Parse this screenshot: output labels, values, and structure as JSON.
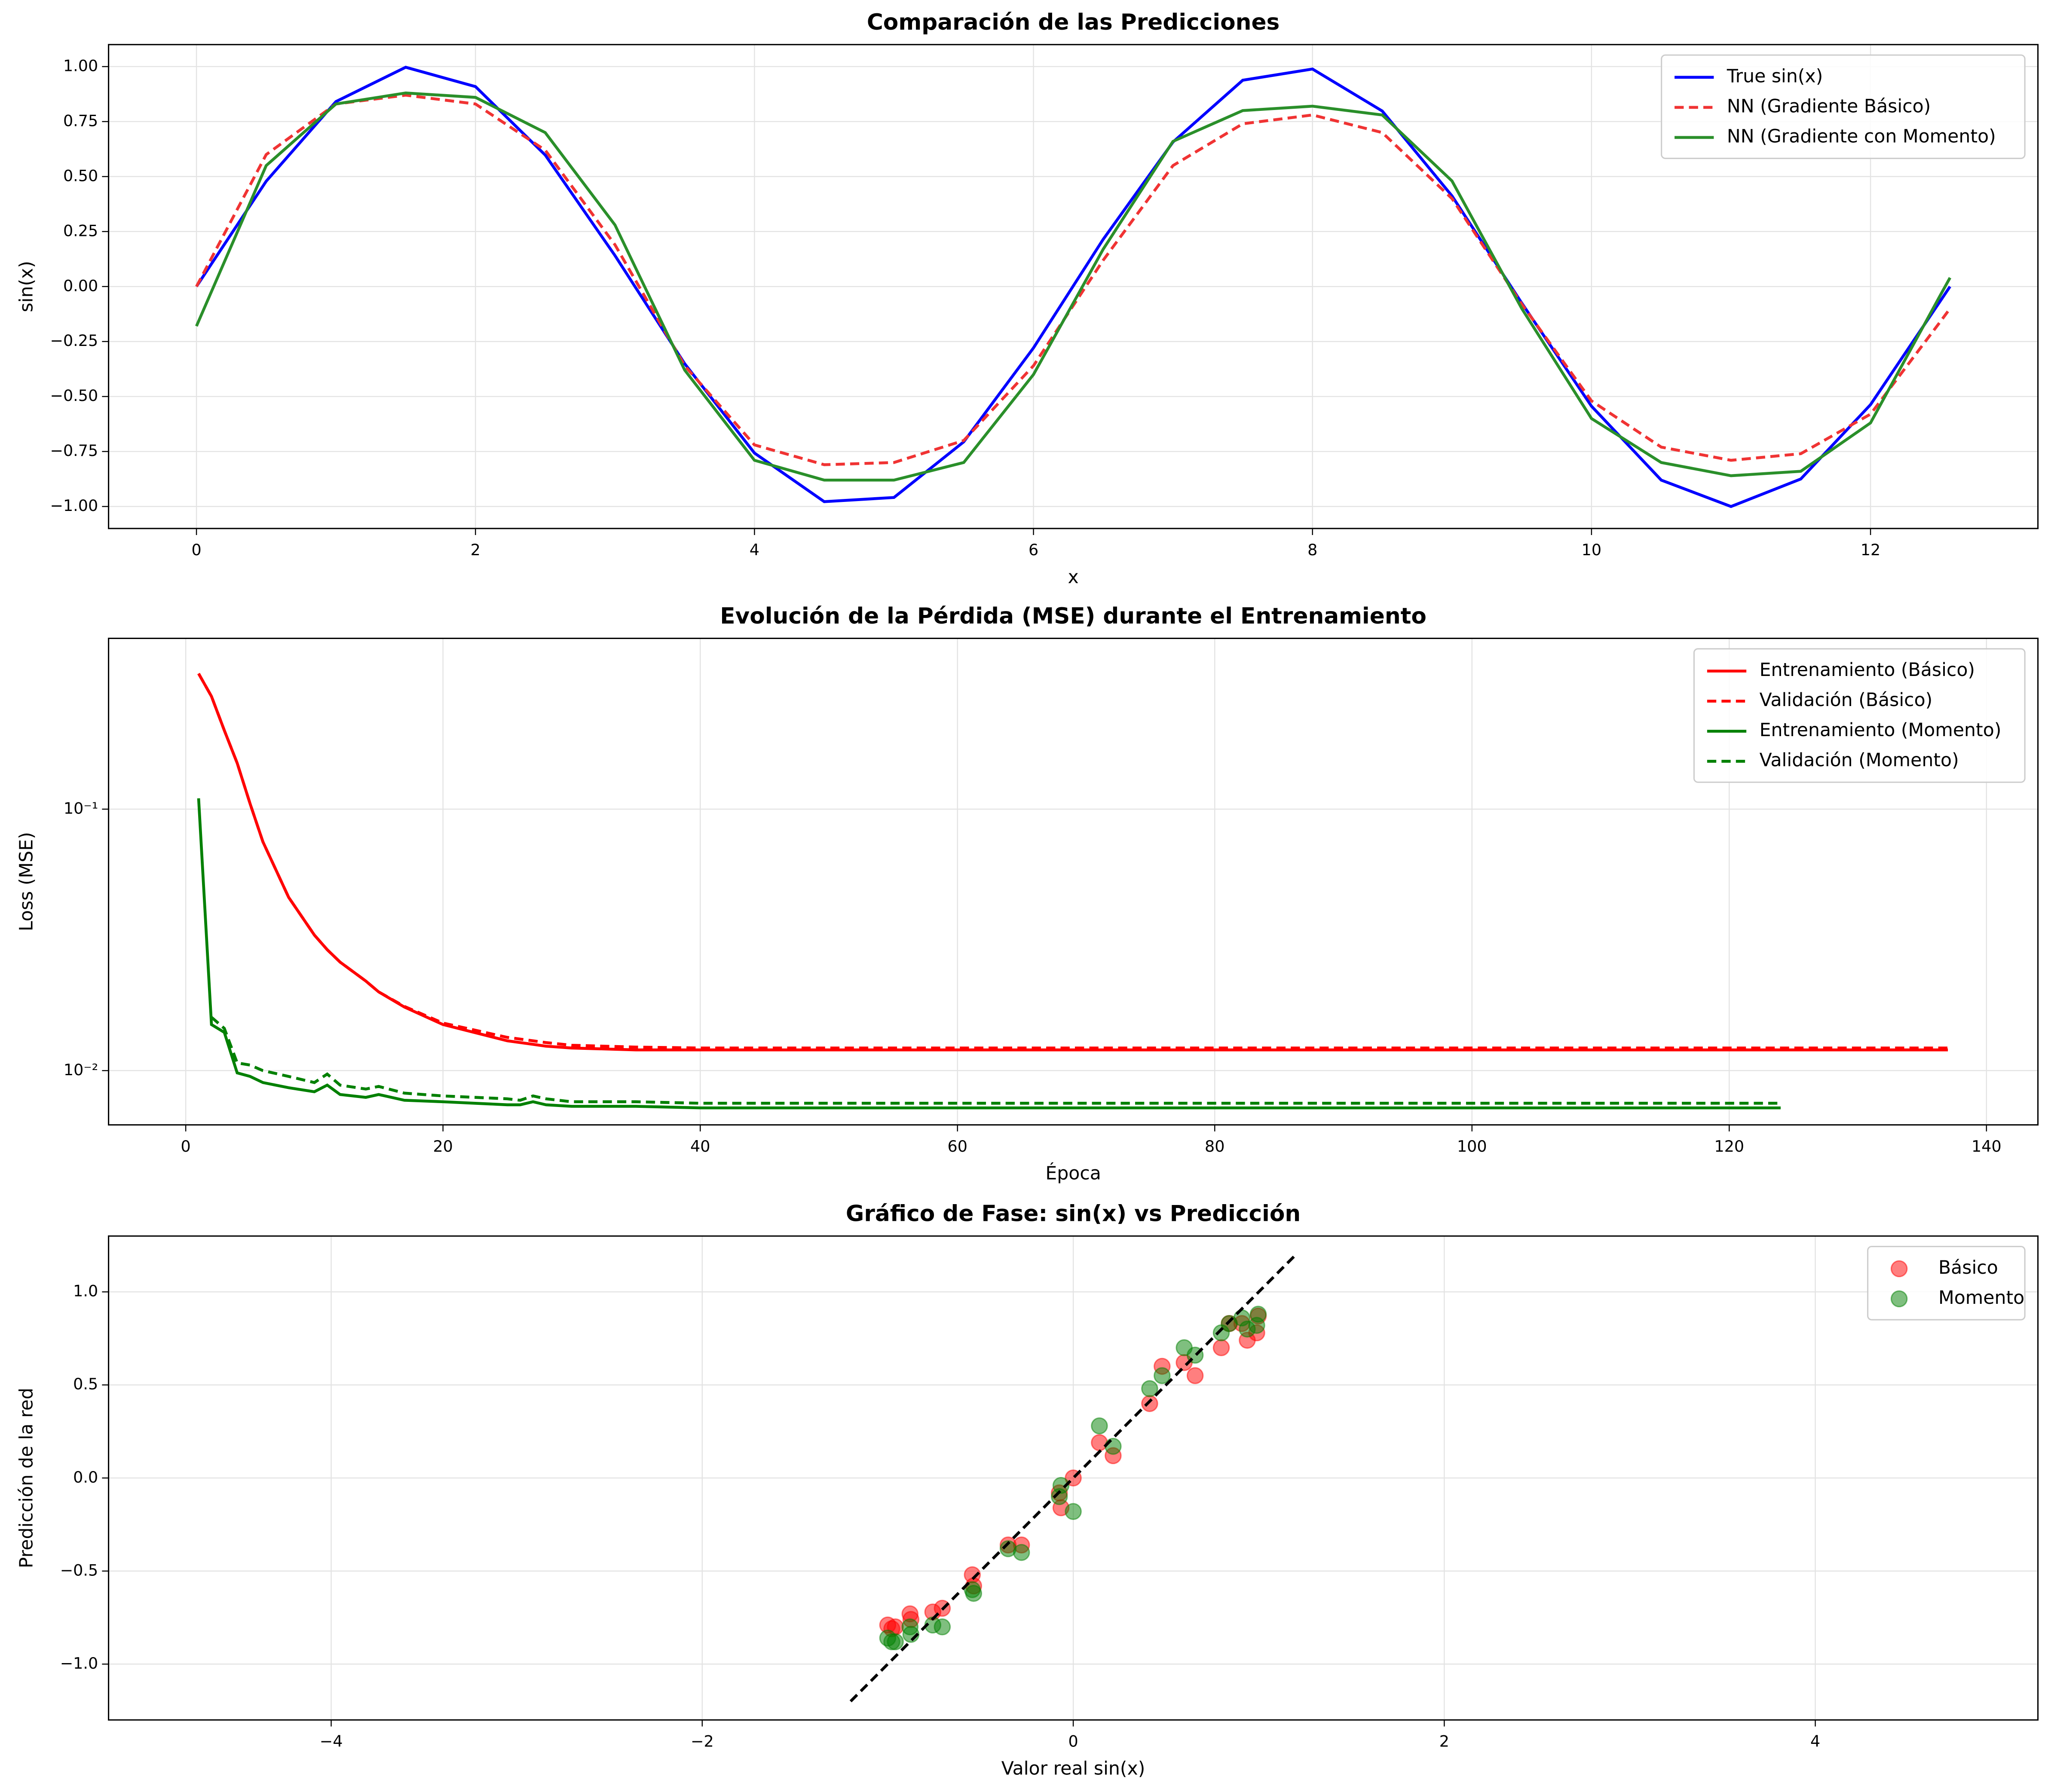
{
  "chart_data": [
    {
      "type": "line",
      "title": "Comparación de las Predicciones",
      "xlabel": "x",
      "ylabel": "sin(x)",
      "x": [
        0,
        0.5,
        1,
        1.5,
        2,
        2.5,
        3,
        3.5,
        4,
        4.5,
        5,
        5.5,
        6,
        6.5,
        7,
        7.5,
        8,
        8.5,
        9,
        9.5,
        10,
        10.5,
        11,
        11.5,
        12,
        12.5,
        12.57
      ],
      "series": [
        {
          "name": "True sin(x)",
          "color": "#0000ff",
          "linestyle": "solid",
          "values": [
            0,
            0.479,
            0.841,
            0.997,
            0.909,
            0.598,
            0.141,
            -0.351,
            -0.757,
            -0.978,
            -0.959,
            -0.706,
            -0.279,
            0.215,
            0.657,
            0.938,
            0.989,
            0.798,
            0.412,
            -0.075,
            -0.544,
            -0.88,
            -1.0,
            -0.875,
            -0.537,
            -0.066,
            0.0
          ]
        },
        {
          "name": "NN (Gradiente Básico)",
          "color": "#f03333",
          "linestyle": "dashed",
          "values": [
            0,
            0.6,
            0.83,
            0.87,
            0.83,
            0.62,
            0.19,
            -0.36,
            -0.72,
            -0.81,
            -0.8,
            -0.7,
            -0.36,
            0.12,
            0.55,
            0.74,
            0.78,
            0.7,
            0.4,
            -0.08,
            -0.52,
            -0.73,
            -0.79,
            -0.76,
            -0.58,
            -0.16,
            -0.1
          ]
        },
        {
          "name": "NN (Gradiente con Momento)",
          "color": "#2a8f2a",
          "linestyle": "solid",
          "values": [
            -0.18,
            0.55,
            0.83,
            0.88,
            0.86,
            0.7,
            0.28,
            -0.38,
            -0.79,
            -0.88,
            -0.88,
            -0.8,
            -0.4,
            0.17,
            0.66,
            0.8,
            0.82,
            0.78,
            0.48,
            -0.1,
            -0.6,
            -0.8,
            -0.86,
            -0.84,
            -0.62,
            -0.04,
            0.04
          ]
        }
      ],
      "xlim": [
        -0.63,
        13.2
      ],
      "xticks": [
        0,
        2,
        4,
        6,
        8,
        10,
        12
      ],
      "ylim": [
        -1.1,
        1.1
      ],
      "yticks": [
        {
          "value": -1,
          "label": "−1.00"
        },
        {
          "value": -0.75,
          "label": "−0.75"
        },
        {
          "value": -0.5,
          "label": "−0.50"
        },
        {
          "value": -0.25,
          "label": "−0.25"
        },
        {
          "value": 0,
          "label": "0.00"
        },
        {
          "value": 0.25,
          "label": "0.25"
        },
        {
          "value": 0.5,
          "label": "0.50"
        },
        {
          "value": 0.75,
          "label": "0.75"
        },
        {
          "value": 1,
          "label": "1.00"
        }
      ],
      "grid": true,
      "legend": "upper right"
    },
    {
      "type": "line",
      "title": "Evolución de la Pérdida (MSE) durante el Entrenamiento",
      "xlabel": "Época",
      "ylabel": "Loss (MSE)",
      "log_y": true,
      "x": [
        1,
        2,
        3,
        4,
        5,
        6,
        8,
        10,
        11,
        12,
        14,
        15,
        17,
        20,
        25,
        26,
        27,
        28,
        30,
        35,
        40,
        60,
        80,
        100,
        124,
        137
      ],
      "series": [
        {
          "name": "Entrenamiento (Básico)",
          "color": "#ff0000",
          "linestyle": "solid",
          "values": [
            0.33,
            0.27,
            0.2,
            0.15,
            0.105,
            0.075,
            0.046,
            0.033,
            0.029,
            0.026,
            0.022,
            0.02,
            0.0175,
            0.015,
            0.013,
            0.0128,
            0.0126,
            0.0124,
            0.0122,
            0.012,
            0.012,
            0.012,
            0.012,
            0.012,
            0.012,
            0.012
          ]
        },
        {
          "name": "Validación (Básico)",
          "color": "#ff0000",
          "linestyle": "dashed",
          "values": [
            0.33,
            0.27,
            0.2,
            0.15,
            0.105,
            0.075,
            0.046,
            0.033,
            0.029,
            0.026,
            0.022,
            0.02,
            0.0176,
            0.0152,
            0.0134,
            0.0132,
            0.013,
            0.0128,
            0.0125,
            0.0123,
            0.0122,
            0.0122,
            0.0122,
            0.0122,
            0.0122,
            0.0122
          ]
        },
        {
          "name": "Entrenamiento (Momento)",
          "color": "#008000",
          "linestyle": "solid",
          "values": [
            0.11,
            0.015,
            0.014,
            0.0098,
            0.0095,
            0.009,
            0.0086,
            0.0083,
            0.0088,
            0.0081,
            0.0079,
            0.0081,
            0.0077,
            0.0076,
            0.0074,
            0.0074,
            0.0076,
            0.0074,
            0.0073,
            0.0073,
            0.0072,
            0.0072,
            0.0072,
            0.0072,
            0.0072,
            null
          ]
        },
        {
          "name": "Validación (Momento)",
          "color": "#008000",
          "linestyle": "dashed",
          "values": [
            null,
            0.016,
            0.0145,
            0.0107,
            0.0105,
            0.01,
            0.0095,
            0.009,
            0.0097,
            0.0088,
            0.0085,
            0.0087,
            0.0082,
            0.008,
            0.0078,
            0.0077,
            0.008,
            0.0078,
            0.0076,
            0.0076,
            0.0075,
            0.0075,
            0.0075,
            0.0075,
            0.0075,
            null
          ]
        }
      ],
      "xlim": [
        -6,
        144
      ],
      "xticks": [
        0,
        20,
        40,
        60,
        80,
        100,
        120,
        140
      ],
      "ylim": [
        0.0062,
        0.45
      ],
      "yticks": [
        {
          "value": 0.01,
          "label": "10⁻²"
        },
        {
          "value": 0.1,
          "label": "10⁻¹"
        }
      ],
      "grid": true,
      "legend": "upper right"
    },
    {
      "type": "scatter",
      "title": "Gráfico de Fase: sin(x) vs Predicción",
      "xlabel": "Valor real sin(x)",
      "ylabel": "Predicción de la red",
      "series": [
        {
          "name": "Básico",
          "color": "#ff0000",
          "x": [
            0,
            0.479,
            0.841,
            0.997,
            0.909,
            0.598,
            0.141,
            -0.351,
            -0.757,
            -0.978,
            -0.959,
            -0.706,
            -0.279,
            0.215,
            0.657,
            0.938,
            0.989,
            0.798,
            0.412,
            -0.075,
            -0.544,
            -0.88,
            -1.0,
            -0.875,
            -0.537,
            -0.066
          ],
          "y": [
            0,
            0.6,
            0.83,
            0.87,
            0.83,
            0.62,
            0.19,
            -0.36,
            -0.72,
            -0.81,
            -0.8,
            -0.7,
            -0.36,
            0.12,
            0.55,
            0.74,
            0.78,
            0.7,
            0.4,
            -0.08,
            -0.52,
            -0.73,
            -0.79,
            -0.76,
            -0.58,
            -0.16
          ]
        },
        {
          "name": "Momento",
          "color": "#008000",
          "x": [
            0,
            0.479,
            0.841,
            0.997,
            0.909,
            0.598,
            0.141,
            -0.351,
            -0.757,
            -0.978,
            -0.959,
            -0.706,
            -0.279,
            0.215,
            0.657,
            0.938,
            0.989,
            0.798,
            0.412,
            -0.075,
            -0.544,
            -0.88,
            -1.0,
            -0.875,
            -0.537,
            -0.066
          ],
          "y": [
            -0.18,
            0.55,
            0.83,
            0.88,
            0.86,
            0.7,
            0.28,
            -0.38,
            -0.79,
            -0.88,
            -0.88,
            -0.8,
            -0.4,
            0.17,
            0.66,
            0.8,
            0.82,
            0.78,
            0.48,
            -0.1,
            -0.6,
            -0.8,
            -0.86,
            -0.84,
            -0.62,
            -0.04
          ]
        }
      ],
      "reference_line": {
        "x": [
          -1.2,
          1.2
        ],
        "y": [
          -1.2,
          1.2
        ],
        "color": "#000000",
        "linestyle": "dashed"
      },
      "xlim": [
        -5.2,
        5.2
      ],
      "xticks": [
        {
          "value": -4,
          "label": "−4"
        },
        {
          "value": -2,
          "label": "−2"
        },
        0,
        2,
        4
      ],
      "ylim": [
        -1.3,
        1.3
      ],
      "yticks": [
        {
          "value": -1,
          "label": "−1.0"
        },
        {
          "value": -0.5,
          "label": "−0.5"
        },
        {
          "value": 0,
          "label": "0.0"
        },
        {
          "value": 0.5,
          "label": "0.5"
        },
        {
          "value": 1,
          "label": "1.0"
        }
      ],
      "grid": true,
      "legend": "upper right"
    }
  ]
}
